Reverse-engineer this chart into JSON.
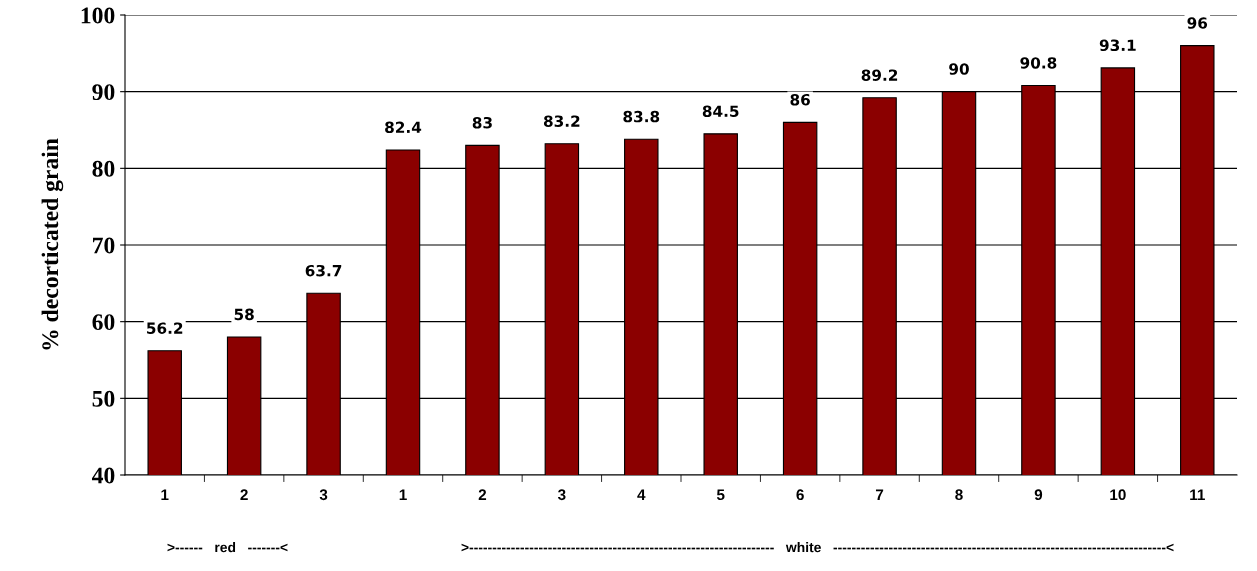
{
  "chart_data": {
    "type": "bar",
    "ylabel": "% decorticated grain",
    "categories": [
      "1",
      "2",
      "3",
      "1",
      "2",
      "3",
      "4",
      "5",
      "6",
      "7",
      "8",
      "9",
      "10",
      "11"
    ],
    "values": [
      56.2,
      58,
      63.7,
      82.4,
      83,
      83.2,
      83.8,
      84.5,
      86,
      89.2,
      90,
      90.8,
      93.1,
      96
    ],
    "color": "#8b0000",
    "ylim": [
      40,
      100
    ],
    "yticks": [
      40,
      50,
      60,
      70,
      80,
      90,
      100
    ],
    "grid": "y",
    "data_labels": true,
    "legend": false,
    "annotations": [
      ">------   red   -------<",
      ">------------------------------------------------------------------   white   ------------------------------------------------------------------------<"
    ]
  }
}
